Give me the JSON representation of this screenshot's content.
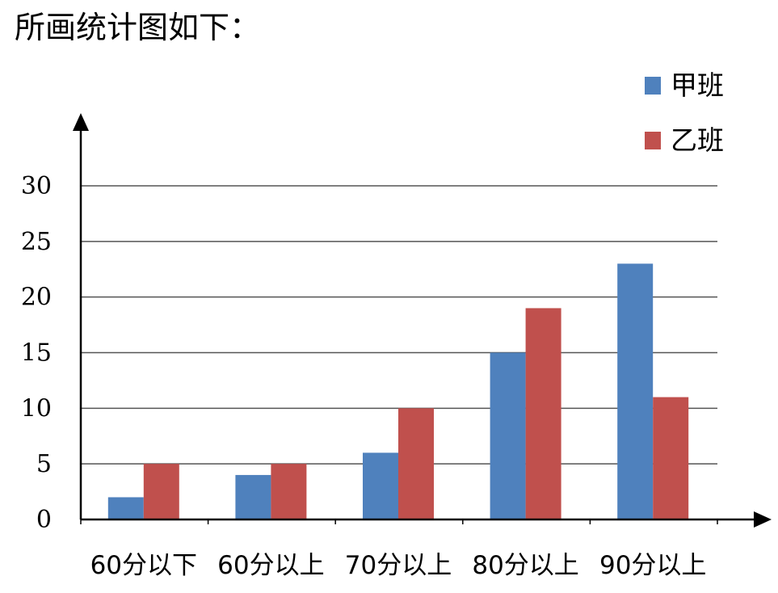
{
  "page": {
    "heading": "所画统计图如下："
  },
  "chart_data": {
    "type": "bar",
    "title": "",
    "xlabel": "",
    "ylabel": "",
    "categories": [
      "60分以下",
      "60分以上",
      "70分以上",
      "80分以上",
      "90分以上"
    ],
    "series": [
      {
        "name": "甲班",
        "color": "#4f81bd",
        "values": [
          2,
          4,
          6,
          15,
          23
        ]
      },
      {
        "name": "乙班",
        "color": "#c0504d",
        "values": [
          5,
          5,
          10,
          19,
          11
        ]
      }
    ],
    "ylim": [
      0,
      30
    ],
    "yticks": [
      0,
      5,
      10,
      15,
      20,
      25,
      30
    ],
    "grid": true,
    "legend_position": "top-right"
  }
}
